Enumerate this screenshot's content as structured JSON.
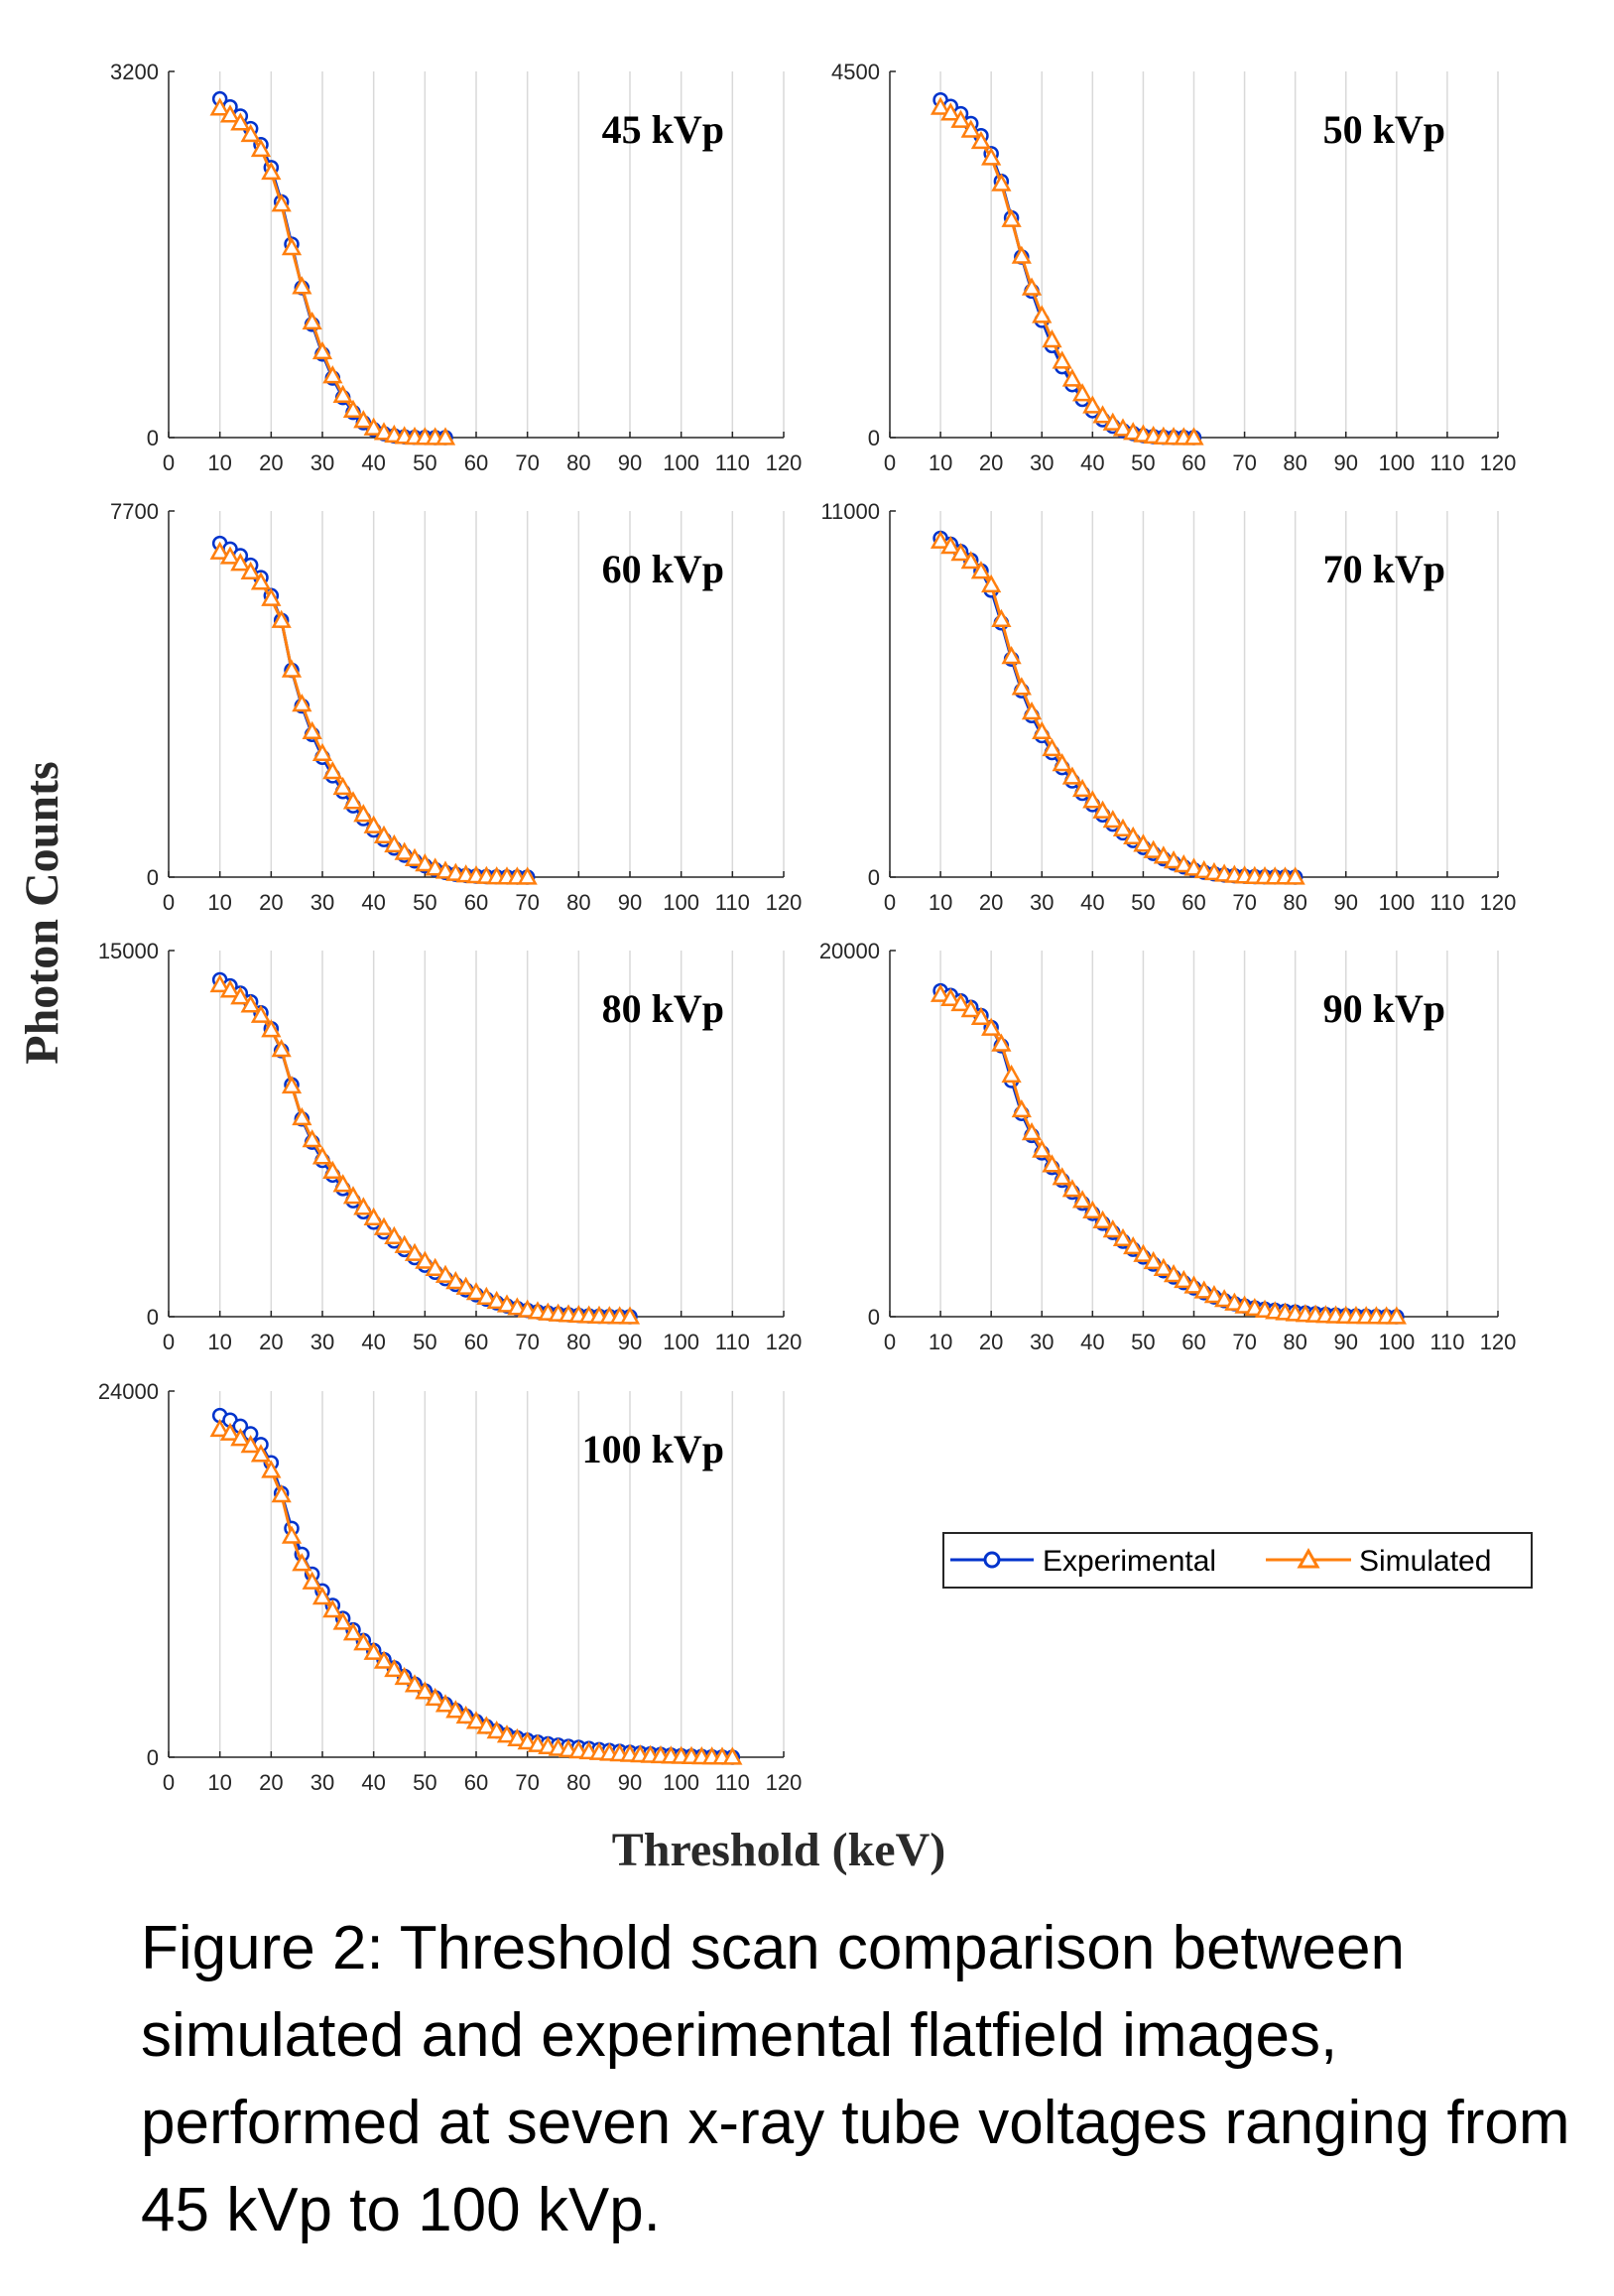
{
  "caption": "Figure 2: Threshold scan comparison between simulated and experimental flatfield images, performed at seven x-ray tube voltages ranging from 45 kVp to 100 kVp.",
  "colors": {
    "experimental": "#0033cc",
    "simulated": "#ff7f0e",
    "grid": "#d9d9d9",
    "axis": "#262626"
  },
  "chart_data": {
    "type": "line",
    "xlabel": "Threshold (keV)",
    "ylabel": "Photon Counts",
    "xlim": [
      0,
      120
    ],
    "xticks": [
      0,
      10,
      20,
      30,
      40,
      50,
      60,
      70,
      80,
      90,
      100,
      110,
      120
    ],
    "grid": "vertical",
    "legend": {
      "placement": "right of bottom-left panel",
      "entries": [
        "Experimental",
        "Simulated"
      ]
    },
    "panels": [
      {
        "label": "45 kVp",
        "ylim": [
          0,
          3200
        ],
        "yticks": [
          0,
          3200
        ],
        "x": [
          10,
          12,
          14,
          16,
          18,
          20,
          22,
          24,
          26,
          28,
          30,
          32,
          34,
          36,
          38,
          40,
          42,
          44,
          46,
          48,
          50,
          52,
          54
        ],
        "series": [
          {
            "name": "Experimental",
            "values": [
              2960,
              2890,
              2810,
              2700,
              2560,
              2360,
              2060,
              1690,
              1310,
              990,
              730,
              520,
              350,
              220,
              130,
              70,
              35,
              15,
              6,
              2,
              1,
              0,
              0
            ]
          },
          {
            "name": "Simulated",
            "values": [
              2880,
              2820,
              2750,
              2650,
              2520,
              2320,
              2040,
              1660,
              1320,
              1010,
              750,
              540,
              370,
              240,
              150,
              85,
              45,
              22,
              10,
              4,
              1,
              0,
              0
            ]
          }
        ]
      },
      {
        "label": "50 kVp",
        "ylim": [
          0,
          4500
        ],
        "yticks": [
          0,
          4500
        ],
        "x": [
          10,
          12,
          14,
          16,
          18,
          20,
          22,
          24,
          26,
          28,
          30,
          32,
          34,
          36,
          38,
          40,
          42,
          44,
          46,
          48,
          50,
          52,
          54,
          56,
          58,
          60
        ],
        "series": [
          {
            "name": "Experimental",
            "values": [
              4150,
              4070,
              3980,
              3860,
              3710,
              3490,
              3150,
              2700,
              2220,
              1800,
              1440,
              1130,
              870,
              650,
              470,
              330,
              220,
              140,
              85,
              50,
              25,
              12,
              5,
              2,
              1,
              0
            ]
          },
          {
            "name": "Simulated",
            "values": [
              4060,
              3990,
              3900,
              3780,
              3640,
              3440,
              3120,
              2680,
              2230,
              1840,
              1500,
              1200,
              940,
              720,
              540,
              390,
              270,
              180,
              110,
              65,
              35,
              18,
              8,
              3,
              1,
              0
            ]
          }
        ]
      },
      {
        "label": "60 kVp",
        "ylim": [
          0,
          7700
        ],
        "yticks": [
          0,
          7700
        ],
        "x": [
          10,
          12,
          14,
          16,
          18,
          20,
          22,
          24,
          26,
          28,
          30,
          32,
          34,
          36,
          38,
          40,
          42,
          44,
          46,
          48,
          50,
          52,
          54,
          56,
          58,
          60,
          62,
          64,
          66,
          68,
          70
        ],
        "series": [
          {
            "name": "Experimental",
            "values": [
              7020,
              6900,
              6760,
              6560,
              6300,
              5920,
              5400,
              4350,
              3600,
              3000,
              2520,
              2130,
              1800,
              1500,
              1230,
              990,
              790,
              610,
              460,
              340,
              240,
              160,
              100,
              60,
              35,
              20,
              10,
              5,
              2,
              1,
              0
            ]
          },
          {
            "name": "Simulated",
            "values": [
              6840,
              6740,
              6600,
              6420,
              6200,
              5860,
              5400,
              4360,
              3640,
              3060,
              2600,
              2220,
              1890,
              1590,
              1320,
              1080,
              870,
              680,
              520,
              390,
              280,
              190,
              125,
              80,
              48,
              28,
              15,
              7,
              3,
              1,
              0
            ]
          }
        ]
      },
      {
        "label": "70 kVp",
        "ylim": [
          0,
          11000
        ],
        "yticks": [
          0,
          11000
        ],
        "x": [
          10,
          12,
          14,
          16,
          18,
          20,
          22,
          24,
          26,
          28,
          30,
          32,
          34,
          36,
          38,
          40,
          42,
          44,
          46,
          48,
          50,
          52,
          54,
          56,
          58,
          60,
          62,
          64,
          66,
          68,
          70,
          72,
          74,
          76,
          78,
          80
        ],
        "series": [
          {
            "name": "Experimental",
            "values": [
              10180,
              10000,
              9780,
              9520,
              9200,
              8620,
              7640,
              6550,
              5600,
              4850,
              4250,
              3740,
              3290,
              2890,
              2520,
              2180,
              1870,
              1590,
              1330,
              1100,
              890,
              710,
              550,
              420,
              310,
              220,
              150,
              100,
              65,
              40,
              25,
              15,
              8,
              4,
              2,
              0
            ]
          },
          {
            "name": "Simulated",
            "values": [
              10100,
              9940,
              9730,
              9490,
              9190,
              8780,
              7740,
              6630,
              5700,
              4960,
              4370,
              3860,
              3410,
              3010,
              2640,
              2300,
              1990,
              1710,
              1450,
              1210,
              990,
              800,
              630,
              490,
              370,
              270,
              195,
              135,
              90,
              58,
              36,
              21,
              12,
              6,
              3,
              0
            ]
          }
        ]
      },
      {
        "label": "80 kVp",
        "ylim": [
          0,
          15000
        ],
        "yticks": [
          0,
          15000
        ],
        "x": [
          10,
          12,
          14,
          16,
          18,
          20,
          22,
          24,
          26,
          28,
          30,
          32,
          34,
          36,
          38,
          40,
          42,
          44,
          46,
          48,
          50,
          52,
          54,
          56,
          58,
          60,
          62,
          64,
          66,
          68,
          70,
          72,
          74,
          76,
          78,
          80,
          82,
          84,
          86,
          88,
          90
        ],
        "series": [
          {
            "name": "Experimental",
            "values": [
              13800,
              13550,
              13250,
              12900,
              12450,
              11800,
              10900,
              9500,
              8100,
              7150,
              6400,
              5800,
              5250,
              4750,
              4300,
              3870,
              3470,
              3100,
              2750,
              2420,
              2110,
              1820,
              1560,
              1320,
              1100,
              900,
              720,
              570,
              440,
              340,
              260,
              200,
              150,
              110,
              80,
              55,
              35,
              20,
              10,
              4,
              0
            ]
          },
          {
            "name": "Simulated",
            "values": [
              13600,
              13380,
              13100,
              12770,
              12350,
              11760,
              10950,
              9450,
              8150,
              7250,
              6550,
              5960,
              5420,
              4930,
              4480,
              4050,
              3650,
              3280,
              2920,
              2590,
              2270,
              1980,
              1700,
              1440,
              1210,
              990,
              800,
              630,
              490,
              370,
              280,
              210,
              155,
              115,
              85,
              60,
              40,
              25,
              14,
              6,
              0
            ]
          }
        ]
      },
      {
        "label": "90 kVp",
        "ylim": [
          0,
          20000
        ],
        "yticks": [
          0,
          20000
        ],
        "x": [
          10,
          12,
          14,
          16,
          18,
          20,
          22,
          24,
          26,
          28,
          30,
          32,
          34,
          36,
          38,
          40,
          42,
          44,
          46,
          48,
          50,
          52,
          54,
          56,
          58,
          60,
          62,
          64,
          66,
          68,
          70,
          72,
          74,
          76,
          78,
          80,
          82,
          84,
          86,
          88,
          90,
          92,
          94,
          96,
          98,
          100
        ],
        "series": [
          {
            "name": "Experimental",
            "values": [
              17800,
              17550,
              17250,
              16900,
              16450,
              15800,
              14800,
              12900,
              11100,
              9900,
              8950,
              8150,
              7450,
              6800,
              6200,
              5640,
              5100,
              4600,
              4120,
              3680,
              3260,
              2870,
              2510,
              2170,
              1860,
              1570,
              1310,
              1080,
              880,
              710,
              580,
              480,
              410,
              350,
              300,
              250,
              200,
              160,
              120,
              90,
              60,
              40,
              25,
              12,
              5,
              0
            ]
          },
          {
            "name": "Simulated",
            "values": [
              17600,
              17380,
              17100,
              16770,
              16350,
              15760,
              14900,
              13200,
              11300,
              10050,
              9100,
              8300,
              7600,
              6950,
              6350,
              5780,
              5240,
              4740,
              4260,
              3820,
              3400,
              3010,
              2640,
              2300,
              1980,
              1680,
              1410,
              1160,
              940,
              750,
              590,
              460,
              360,
              280,
              215,
              165,
              125,
              95,
              70,
              50,
              35,
              22,
              13,
              7,
              3,
              0
            ]
          }
        ]
      },
      {
        "label": "100 kVp",
        "ylim": [
          0,
          24000
        ],
        "yticks": [
          0,
          24000
        ],
        "x": [
          10,
          12,
          14,
          16,
          18,
          20,
          22,
          24,
          26,
          28,
          30,
          32,
          34,
          36,
          38,
          40,
          42,
          44,
          46,
          48,
          50,
          52,
          54,
          56,
          58,
          60,
          62,
          64,
          66,
          68,
          70,
          72,
          74,
          76,
          78,
          80,
          82,
          84,
          86,
          88,
          90,
          92,
          94,
          96,
          98,
          100,
          102,
          104,
          106,
          108,
          110
        ],
        "series": [
          {
            "name": "Experimental",
            "values": [
              22400,
              22100,
              21700,
              21200,
              20500,
              19300,
              17300,
              15000,
              13300,
              12000,
              10900,
              9950,
              9100,
              8350,
              7650,
              7000,
              6400,
              5850,
              5300,
              4800,
              4350,
              3900,
              3480,
              3080,
              2700,
              2350,
              2020,
              1720,
              1470,
              1270,
              1110,
              980,
              880,
              790,
              710,
              640,
              570,
              500,
              440,
              380,
              320,
              270,
              220,
              180,
              140,
              100,
              70,
              45,
              25,
              10,
              0
            ]
          },
          {
            "name": "Simulated",
            "values": [
              21500,
              21250,
              20900,
              20450,
              19850,
              18800,
              17200,
              14500,
              12700,
              11500,
              10500,
              9650,
              8850,
              8150,
              7500,
              6880,
              6300,
              5760,
              5240,
              4760,
              4300,
              3870,
              3460,
              3070,
              2700,
              2350,
              2020,
              1720,
              1450,
              1210,
              1000,
              830,
              690,
              580,
              490,
              420,
              360,
              310,
              265,
              225,
              190,
              155,
              125,
              100,
              75,
              55,
              40,
              27,
              16,
              7,
              0
            ]
          }
        ]
      }
    ]
  }
}
